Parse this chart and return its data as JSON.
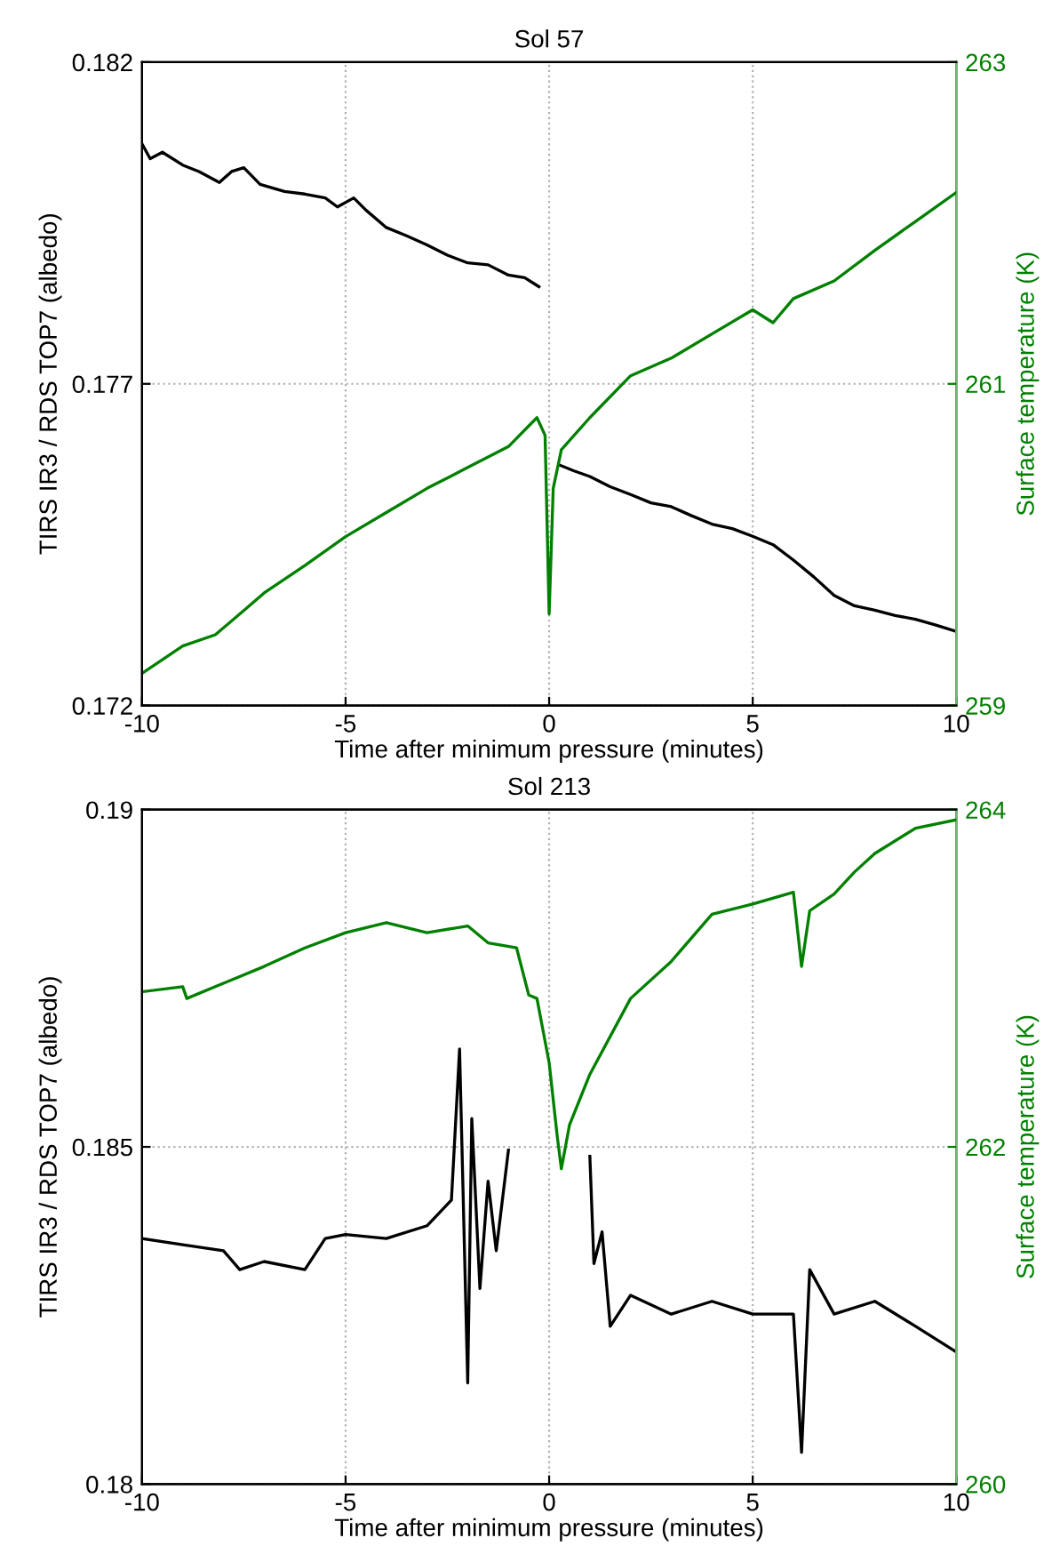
{
  "chart_data": [
    {
      "type": "line",
      "title": "Sol 57",
      "xlabel": "Time after minimum pressure (minutes)",
      "ylabel": "TIRS IR3 / RDS TOP7 (albedo)",
      "y2label": "Surface temperature (K)",
      "xlim": [
        -10,
        10
      ],
      "xticks": [
        -10,
        -5,
        0,
        5,
        10
      ],
      "ylim": [
        0.172,
        0.182
      ],
      "yticks": [
        0.172,
        0.177,
        0.182
      ],
      "y2lim": [
        259,
        263
      ],
      "y2ticks": [
        259,
        261,
        263
      ],
      "grid": true,
      "series": [
        {
          "color": "#000000",
          "x": [
            -10,
            -9.8,
            -9.5,
            -9,
            -8.6,
            -8.1,
            -7.8,
            -7.5,
            -7.1,
            -6.5,
            -6,
            -5.5,
            -5.2,
            -4.8,
            -4.5,
            -4,
            -3.5,
            -3,
            -2.5,
            -2,
            -1.5,
            -1,
            -0.6,
            -0.25,
            0,
            0.25,
            0.6,
            1,
            1.5,
            2,
            2.5,
            3,
            3.5,
            4,
            4.5,
            5,
            5.5,
            6,
            6.5,
            7,
            7.5,
            8,
            8.5,
            9,
            9.5,
            10
          ],
          "values": [
            0.18073,
            0.1805,
            0.1806,
            0.1804,
            0.1803,
            0.18013,
            0.1803,
            0.18036,
            0.1801,
            0.17999,
            0.17995,
            0.17989,
            0.17975,
            0.17989,
            0.1797,
            0.17943,
            0.1793,
            0.17916,
            0.179,
            0.17888,
            0.17885,
            0.17869,
            0.17865,
            0.17851,
            null,
            0.17574,
            0.17565,
            0.17556,
            0.1754,
            0.17528,
            0.17515,
            0.17509,
            0.17495,
            0.17482,
            0.17475,
            0.17463,
            0.1745,
            0.17426,
            0.174,
            0.17371,
            0.17355,
            0.17348,
            0.1734,
            0.17334,
            0.17325,
            0.17315
          ]
        },
        {
          "color": "#008000",
          "axis": "y2",
          "x": [
            -10,
            -9,
            -8.2,
            -7.5,
            -7,
            -6,
            -5,
            -4,
            -3,
            -2,
            -1,
            -0.3,
            -0.1,
            0,
            0.1,
            0.3,
            1,
            2,
            3,
            4,
            5,
            5.5,
            6,
            7,
            8,
            9,
            10
          ],
          "values": [
            259.2,
            259.37,
            259.44,
            259.59,
            259.7,
            259.87,
            260.05,
            260.2,
            260.35,
            260.48,
            260.61,
            260.79,
            260.68,
            259.57,
            260.35,
            260.59,
            260.79,
            261.05,
            261.16,
            261.31,
            261.46,
            261.38,
            261.53,
            261.64,
            261.83,
            262.01,
            262.19
          ]
        }
      ]
    },
    {
      "type": "line",
      "title": "Sol 213",
      "xlabel": "Time after minimum pressure (minutes)",
      "ylabel": "TIRS IR3 / RDS TOP7 (albedo)",
      "y2label": "Surface temperature (K)",
      "xlim": [
        -10,
        10
      ],
      "xticks": [
        -10,
        -5,
        0,
        5,
        10
      ],
      "ylim": [
        0.18,
        0.19
      ],
      "yticks": [
        0.18,
        0.185,
        0.19
      ],
      "y2lim": [
        260,
        264
      ],
      "y2ticks": [
        260,
        262,
        264
      ],
      "grid": true,
      "series": [
        {
          "color": "#000000",
          "x": [
            -10,
            -9,
            -8,
            -7.6,
            -7,
            -6,
            -5.5,
            -5,
            -4,
            -3,
            -2.4,
            -2.2,
            -2.0,
            -1.9,
            -1.7,
            -1.5,
            -1.3,
            -1.0,
            0,
            1.0,
            1.1,
            1.3,
            1.5,
            2,
            3,
            4,
            5,
            6,
            6.2,
            6.4,
            7,
            8,
            9,
            10
          ],
          "values": [
            0.18364,
            0.18355,
            0.18346,
            0.18318,
            0.1833,
            0.18318,
            0.18364,
            0.1837,
            0.18364,
            0.18383,
            0.18421,
            0.18645,
            0.1815,
            0.18542,
            0.1829,
            0.18449,
            0.18346,
            0.18495,
            null,
            0.18486,
            0.18327,
            0.18374,
            0.18234,
            0.1828,
            0.18252,
            0.18271,
            0.18252,
            0.18252,
            0.18047,
            0.18318,
            0.18252,
            0.18271,
            0.18234,
            0.18196
          ]
        },
        {
          "color": "#008000",
          "axis": "y2",
          "x": [
            -10,
            -9,
            -8.9,
            -8,
            -7,
            -6,
            -5,
            -4,
            -3,
            -2,
            -1.5,
            -0.8,
            -0.5,
            -0.3,
            0,
            0.2,
            0.3,
            0.5,
            1,
            2,
            3,
            4,
            5,
            6,
            6.2,
            6.4,
            7,
            7.5,
            8,
            9,
            10
          ],
          "values": [
            262.92,
            262.95,
            262.88,
            262.97,
            263.07,
            263.18,
            263.27,
            263.33,
            263.27,
            263.31,
            263.21,
            263.18,
            262.9,
            262.88,
            262.5,
            262.06,
            261.87,
            262.13,
            262.43,
            262.88,
            263.1,
            263.38,
            263.44,
            263.51,
            263.07,
            263.4,
            263.5,
            263.63,
            263.74,
            263.89,
            263.94
          ]
        }
      ]
    }
  ]
}
